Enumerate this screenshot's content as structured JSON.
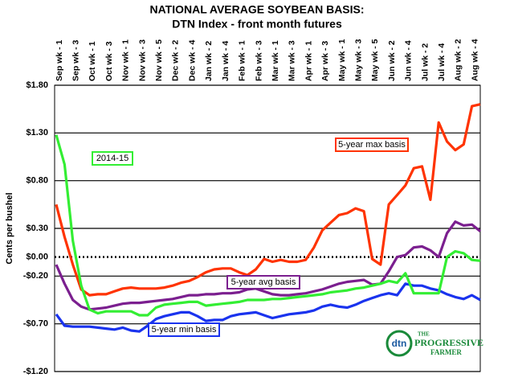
{
  "chart_data": {
    "type": "line",
    "title": "NATIONAL AVERAGE SOYBEAN BASIS:",
    "subtitle": "DTN Index - front month futures",
    "y_label": "Cents per bushel",
    "categories": [
      "Sep wk - 1",
      null,
      "Sep wk - 3",
      null,
      "Oct wk - 1",
      null,
      "Oct wk - 3",
      null,
      "Nov wk - 1",
      null,
      "Nov wk - 3",
      null,
      "Nov wk - 5",
      null,
      "Dec wk - 2",
      null,
      "Dec wk - 4",
      null,
      "Jan wk - 2",
      null,
      "Jan wk - 4",
      null,
      "Feb wk - 1",
      null,
      "Feb wk - 3",
      null,
      "Mar wk - 1",
      null,
      "Mar wk - 3",
      null,
      "Apr wk - 1",
      null,
      "Apr wk - 3",
      null,
      "May wk - 1",
      null,
      "May wk - 3",
      null,
      "May wk - 5",
      null,
      "Jun wk - 2",
      null,
      "Jun wk - 4",
      null,
      "Jul wk - 2",
      null,
      "Jul wk - 4",
      null,
      "Aug wk - 2",
      null,
      "Aug wk - 4",
      null
    ],
    "series": [
      {
        "name": "5-year max basis",
        "color": "#ff3300",
        "values": [
          0.55,
          0.21,
          -0.08,
          -0.34,
          -0.4,
          -0.39,
          -0.39,
          -0.36,
          -0.33,
          -0.32,
          -0.33,
          -0.33,
          -0.33,
          -0.32,
          -0.3,
          -0.27,
          -0.25,
          -0.21,
          -0.16,
          -0.13,
          -0.12,
          -0.12,
          -0.16,
          -0.19,
          -0.13,
          -0.02,
          -0.05,
          -0.03,
          -0.05,
          -0.05,
          -0.03,
          0.1,
          0.28,
          0.36,
          0.44,
          0.46,
          0.51,
          0.48,
          -0.02,
          -0.08,
          0.55,
          0.65,
          0.75,
          0.93,
          0.95,
          0.6,
          1.41,
          1.21,
          1.12,
          1.18,
          1.58,
          1.6
        ]
      },
      {
        "name": "5-year avg basis",
        "color": "#7b1f8f",
        "values": [
          -0.08,
          -0.28,
          -0.45,
          -0.52,
          -0.55,
          -0.54,
          -0.53,
          -0.51,
          -0.49,
          -0.48,
          -0.48,
          -0.47,
          -0.46,
          -0.45,
          -0.44,
          -0.42,
          -0.4,
          -0.4,
          -0.39,
          -0.39,
          -0.38,
          -0.38,
          -0.37,
          -0.34,
          -0.33,
          -0.36,
          -0.39,
          -0.4,
          -0.4,
          -0.39,
          -0.38,
          -0.36,
          -0.34,
          -0.31,
          -0.28,
          -0.26,
          -0.25,
          -0.24,
          -0.29,
          -0.28,
          -0.15,
          0.0,
          0.02,
          0.1,
          0.11,
          0.07,
          0.0,
          0.25,
          0.37,
          0.33,
          0.34,
          0.27
        ]
      },
      {
        "name": "5-year min basis",
        "color": "#1a33ee",
        "values": [
          -0.6,
          -0.72,
          -0.73,
          -0.73,
          -0.73,
          -0.74,
          -0.75,
          -0.76,
          -0.74,
          -0.77,
          -0.78,
          -0.72,
          -0.65,
          -0.62,
          -0.6,
          -0.58,
          -0.58,
          -0.62,
          -0.67,
          -0.66,
          -0.66,
          -0.62,
          -0.6,
          -0.59,
          -0.58,
          -0.61,
          -0.64,
          -0.62,
          -0.6,
          -0.59,
          -0.58,
          -0.56,
          -0.52,
          -0.5,
          -0.52,
          -0.53,
          -0.5,
          -0.46,
          -0.43,
          -0.4,
          -0.38,
          -0.4,
          -0.28,
          -0.3,
          -0.3,
          -0.33,
          -0.35,
          -0.39,
          -0.42,
          -0.44,
          -0.4,
          -0.45
        ]
      },
      {
        "name": "2014-15",
        "color": "#33ee33",
        "values": [
          1.28,
          0.97,
          0.17,
          -0.3,
          -0.55,
          -0.59,
          -0.57,
          -0.57,
          -0.57,
          -0.57,
          -0.61,
          -0.61,
          -0.53,
          -0.5,
          -0.49,
          -0.48,
          -0.47,
          -0.47,
          -0.51,
          -0.5,
          -0.49,
          -0.48,
          -0.47,
          -0.45,
          -0.45,
          -0.45,
          -0.44,
          -0.44,
          -0.43,
          -0.42,
          -0.41,
          -0.4,
          -0.39,
          -0.37,
          -0.36,
          -0.35,
          -0.33,
          -0.32,
          -0.3,
          -0.28,
          -0.25,
          -0.27,
          -0.17,
          -0.38,
          -0.38,
          -0.38,
          -0.38,
          0.0,
          0.06,
          0.04,
          -0.03,
          -0.04
        ]
      }
    ],
    "ylim": [
      -1.2,
      1.8
    ],
    "yticks": [
      {
        "value": -1.2,
        "label": "-$1.20"
      },
      {
        "value": -0.7,
        "label": "-$0.70"
      },
      {
        "value": -0.2,
        "label": "-$0.20"
      },
      {
        "value": 0,
        "label": "$0.00"
      },
      {
        "value": 0.3,
        "label": "$0.30"
      },
      {
        "value": 0.8,
        "label": "$0.80"
      },
      {
        "value": 1.3,
        "label": "$1.30"
      },
      {
        "value": 1.8,
        "label": "$1.80"
      }
    ],
    "grid": true,
    "logo": [
      "dtn",
      "THE",
      "PROGRESSIVE",
      "FARMER"
    ]
  }
}
